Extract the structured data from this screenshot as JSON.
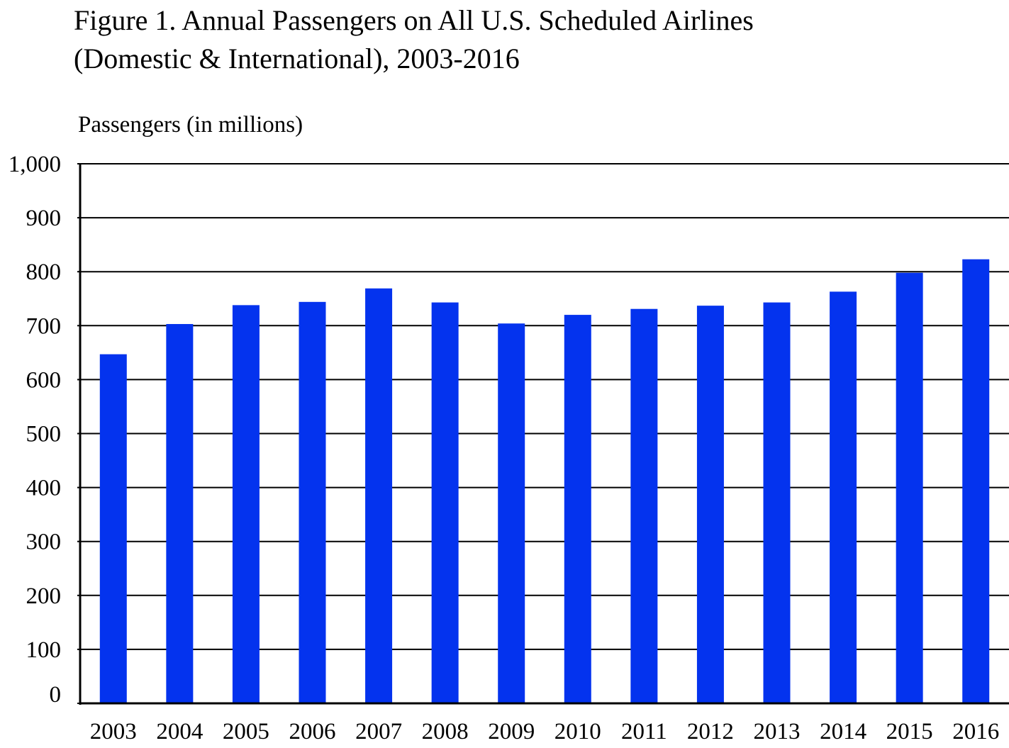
{
  "chart_data": {
    "type": "bar",
    "title": "Figure 1. Annual Passengers on All U.S. Scheduled Airlines (Domestic & International), 2003-2016",
    "title_lines": [
      "Figure 1. Annual Passengers on All U.S. Scheduled Airlines",
      "(Domestic & International), 2003-2016"
    ],
    "xlabel": "",
    "ylabel": "Passengers (in millions)",
    "ylim": [
      0,
      1000
    ],
    "yticks": [
      0,
      100,
      200,
      300,
      400,
      500,
      600,
      700,
      800,
      900,
      1000
    ],
    "ytick_labels": [
      "0",
      "100",
      "200",
      "300",
      "400",
      "500",
      "600",
      "700",
      "800",
      "900",
      "1,000"
    ],
    "grid": true,
    "bar_color": "#0433EE",
    "categories": [
      "2003",
      "2004",
      "2005",
      "2006",
      "2007",
      "2008",
      "2009",
      "2010",
      "2011",
      "2012",
      "2013",
      "2014",
      "2015",
      "2016"
    ],
    "values": [
      647,
      703,
      738,
      744,
      769,
      743,
      704,
      720,
      731,
      737,
      743,
      763,
      798,
      823
    ]
  }
}
